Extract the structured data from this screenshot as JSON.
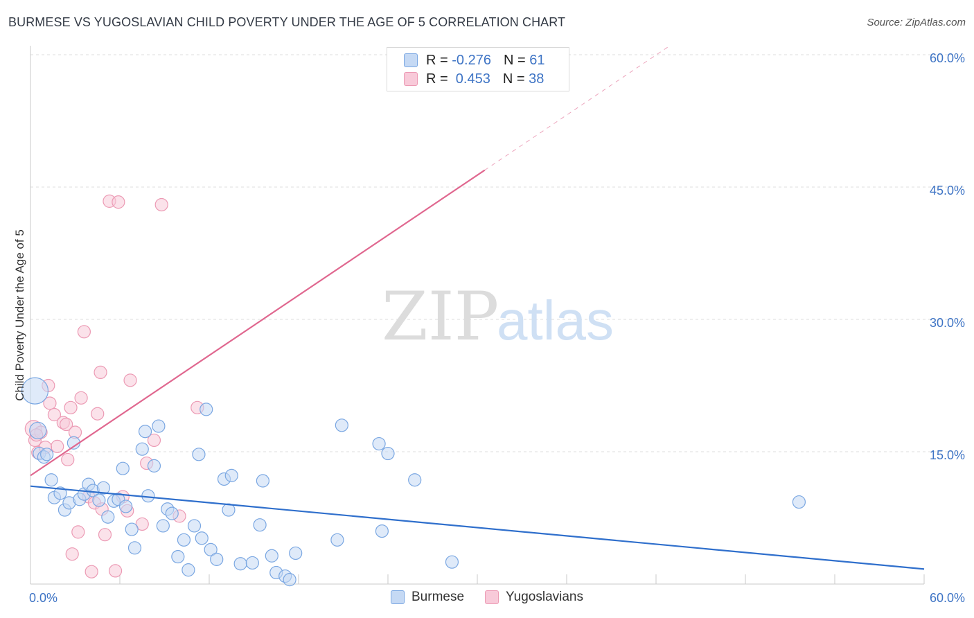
{
  "header": {
    "title": "BURMESE VS YUGOSLAVIAN CHILD POVERTY UNDER THE AGE OF 5 CORRELATION CHART",
    "source": "Source: ZipAtlas.com"
  },
  "watermark": {
    "part1": "ZIP",
    "part2": "atlas"
  },
  "colors": {
    "burmese_fill": "#c5d9f4",
    "burmese_stroke": "#7aa7e2",
    "burmese_line": "#2f6fcc",
    "yugo_fill": "#f8cad9",
    "yugo_stroke": "#ec9ab4",
    "yugo_line": "#e0678f",
    "axis_text": "#3e74c5",
    "grid": "#dcdcdc"
  },
  "legend": {
    "rows": [
      {
        "r_label": "R = ",
        "r_value": "-0.276",
        "n_label": "N = ",
        "n_value": "61"
      },
      {
        "r_label": "R = ",
        "r_value": " 0.453",
        "n_label": "N = ",
        "n_value": "38"
      }
    ]
  },
  "bottom_legend": {
    "series1": "Burmese",
    "series2": "Yugoslavians"
  },
  "chart_data": {
    "type": "scatter",
    "title": "BURMESE VS YUGOSLAVIAN CHILD POVERTY UNDER THE AGE OF 5 CORRELATION CHART",
    "xlabel": "",
    "ylabel": "Child Poverty Under the Age of 5",
    "xlim": [
      0,
      60
    ],
    "ylim": [
      0,
      60
    ],
    "y_ticks": [
      15,
      30,
      45,
      60
    ],
    "y_tick_labels": [
      "15.0%",
      "30.0%",
      "45.0%",
      "60.0%"
    ],
    "x_tick_labels": [
      "0.0%",
      "60.0%"
    ],
    "series": [
      {
        "name": "Burmese",
        "r": -0.276,
        "n": 61,
        "trend": {
          "x": [
            0,
            60
          ],
          "y": [
            11.1,
            1.7
          ],
          "dashed_from": null
        },
        "points": [
          [
            0.3,
            21.9,
            20
          ],
          [
            0.5,
            17.4,
            13
          ],
          [
            0.6,
            14.8,
            10
          ],
          [
            0.9,
            14.4,
            10
          ],
          [
            1.1,
            14.7,
            10
          ],
          [
            1.4,
            11.8,
            10
          ],
          [
            1.6,
            9.8,
            10
          ],
          [
            2.0,
            10.3,
            10
          ],
          [
            2.3,
            8.4,
            10
          ],
          [
            2.6,
            9.2,
            10
          ],
          [
            2.9,
            16.0,
            10
          ],
          [
            3.3,
            9.6,
            10
          ],
          [
            3.6,
            10.2,
            10
          ],
          [
            3.9,
            11.3,
            10
          ],
          [
            4.2,
            10.6,
            10
          ],
          [
            4.6,
            9.5,
            10
          ],
          [
            4.9,
            10.9,
            10
          ],
          [
            5.2,
            7.6,
            10
          ],
          [
            5.6,
            9.4,
            10
          ],
          [
            5.9,
            9.6,
            10
          ],
          [
            6.2,
            13.1,
            10
          ],
          [
            6.4,
            8.8,
            10
          ],
          [
            6.8,
            6.2,
            10
          ],
          [
            7.0,
            4.1,
            10
          ],
          [
            7.5,
            15.3,
            10
          ],
          [
            7.7,
            17.3,
            10
          ],
          [
            7.9,
            10.0,
            10
          ],
          [
            8.3,
            13.4,
            10
          ],
          [
            8.6,
            17.9,
            10
          ],
          [
            8.9,
            6.6,
            10
          ],
          [
            9.2,
            8.5,
            10
          ],
          [
            9.5,
            8.0,
            10
          ],
          [
            9.9,
            3.1,
            10
          ],
          [
            10.3,
            5.0,
            10
          ],
          [
            10.6,
            1.6,
            10
          ],
          [
            11.0,
            6.6,
            10
          ],
          [
            11.3,
            14.7,
            10
          ],
          [
            11.5,
            5.2,
            10
          ],
          [
            11.8,
            19.8,
            10
          ],
          [
            12.1,
            3.9,
            10
          ],
          [
            12.5,
            2.8,
            10
          ],
          [
            13.0,
            11.9,
            10
          ],
          [
            13.3,
            8.4,
            10
          ],
          [
            13.5,
            12.3,
            10
          ],
          [
            14.1,
            2.3,
            10
          ],
          [
            14.9,
            2.4,
            10
          ],
          [
            15.4,
            6.7,
            10
          ],
          [
            15.6,
            11.7,
            10
          ],
          [
            16.2,
            3.2,
            10
          ],
          [
            16.5,
            1.3,
            10
          ],
          [
            17.1,
            0.9,
            10
          ],
          [
            17.4,
            0.5,
            10
          ],
          [
            17.8,
            3.5,
            10
          ],
          [
            20.6,
            5.0,
            10
          ],
          [
            20.9,
            18.0,
            10
          ],
          [
            23.4,
            15.9,
            10
          ],
          [
            23.6,
            6.0,
            10
          ],
          [
            24.0,
            14.8,
            10
          ],
          [
            25.8,
            11.8,
            10
          ],
          [
            28.3,
            2.5,
            10
          ],
          [
            51.6,
            9.3,
            10
          ]
        ]
      },
      {
        "name": "Yugoslavians",
        "r": 0.453,
        "n": 38,
        "trend": {
          "x": [
            0,
            60
          ],
          "y": [
            12.3,
            80.4
          ],
          "solid_until_x": 30.5
        },
        "points": [
          [
            0.2,
            17.6,
            13
          ],
          [
            0.3,
            16.3,
            10
          ],
          [
            0.5,
            14.9,
            10
          ],
          [
            0.7,
            17.2,
            10
          ],
          [
            1.2,
            22.5,
            10
          ],
          [
            1.3,
            20.5,
            10
          ],
          [
            1.6,
            19.2,
            10
          ],
          [
            1.8,
            15.6,
            10
          ],
          [
            2.2,
            18.3,
            10
          ],
          [
            2.4,
            18.1,
            10
          ],
          [
            2.5,
            14.1,
            10
          ],
          [
            2.7,
            20.0,
            10
          ],
          [
            2.8,
            3.4,
            10
          ],
          [
            3.0,
            17.2,
            10
          ],
          [
            3.2,
            5.9,
            10
          ],
          [
            3.4,
            21.1,
            10
          ],
          [
            3.6,
            28.6,
            10
          ],
          [
            3.9,
            9.9,
            10
          ],
          [
            4.1,
            1.4,
            10
          ],
          [
            4.3,
            9.2,
            10
          ],
          [
            4.5,
            19.3,
            10
          ],
          [
            4.7,
            24.0,
            10
          ],
          [
            4.8,
            8.5,
            10
          ],
          [
            5.0,
            5.6,
            10
          ],
          [
            5.3,
            43.4,
            10
          ],
          [
            5.7,
            1.5,
            10
          ],
          [
            5.9,
            43.3,
            10
          ],
          [
            6.2,
            9.9,
            10
          ],
          [
            6.5,
            8.3,
            10
          ],
          [
            6.7,
            23.1,
            10
          ],
          [
            7.5,
            6.8,
            10
          ],
          [
            7.8,
            13.7,
            10
          ],
          [
            8.3,
            16.3,
            10
          ],
          [
            8.8,
            43.0,
            10
          ],
          [
            10.0,
            7.7,
            10
          ],
          [
            11.2,
            20.0,
            10
          ],
          [
            0.4,
            16.9,
            10
          ],
          [
            1.0,
            15.5,
            10
          ]
        ]
      }
    ]
  }
}
